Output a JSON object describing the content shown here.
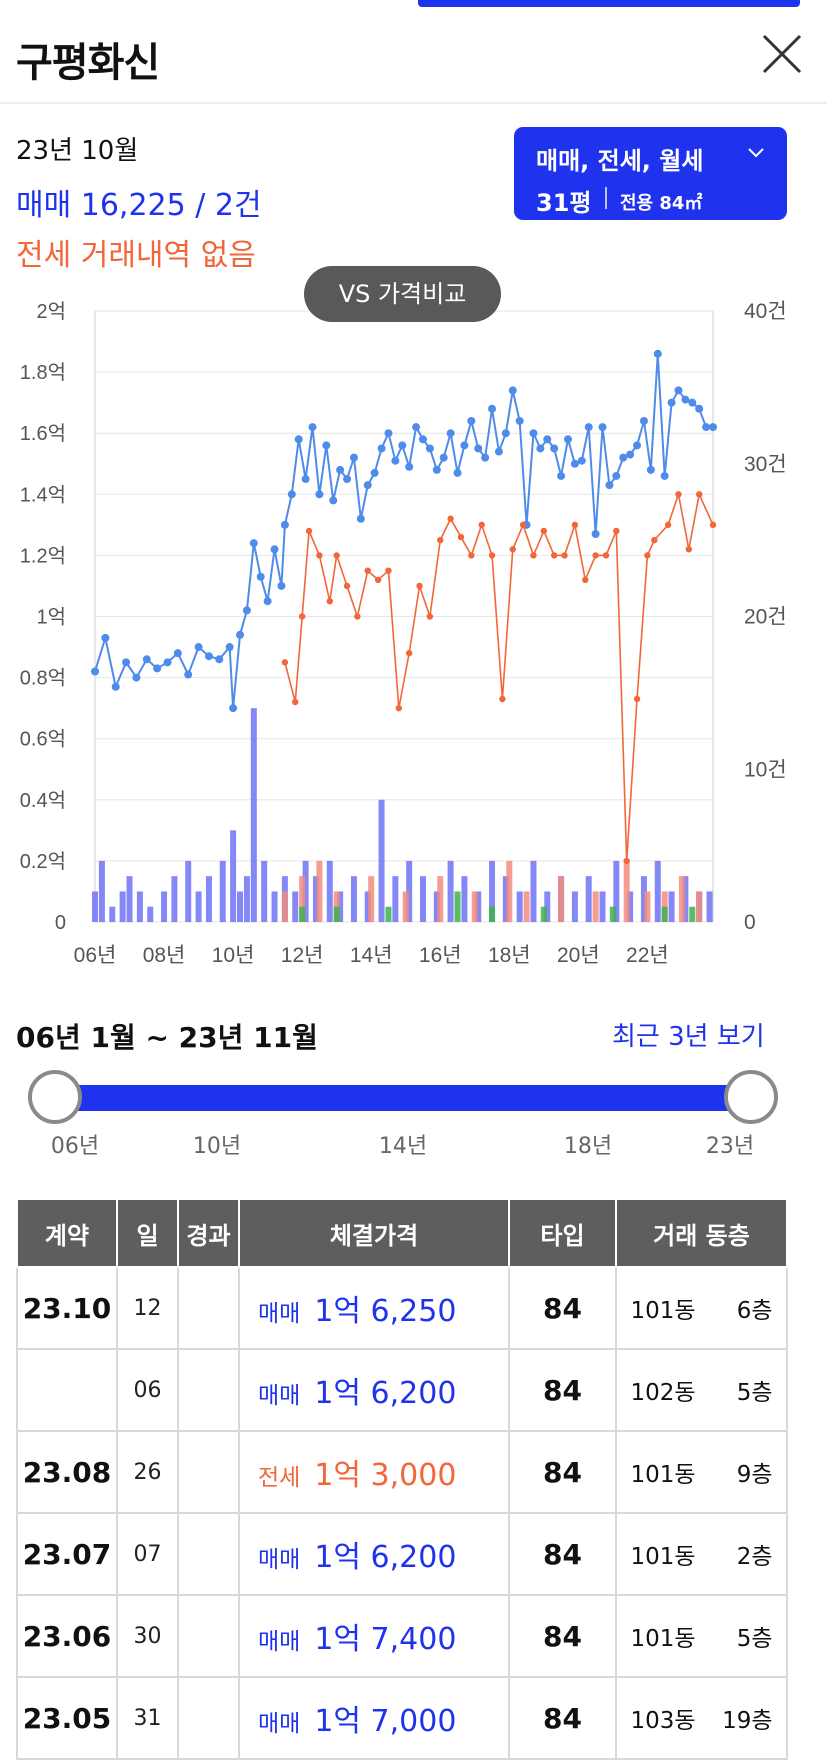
{
  "header": {
    "title": "구평화신"
  },
  "summary": {
    "date": "23년 10월",
    "sale": "매매 16,225 / 2건",
    "lease": "전세 거래내역 없음"
  },
  "filter": {
    "deal_types": "매매, 전세, 월세",
    "pyeong": "31평",
    "area": "전용 84㎡"
  },
  "vs_button": "VS 가격비교",
  "colors": {
    "accent": "#1f33ee",
    "sale": "#4f8bea",
    "lease": "#f2663a",
    "volume_sale": "#6d73f5",
    "volume_lease": "#f28c7d",
    "volume_rent": "#3db34a"
  },
  "chart_data": {
    "type": "line",
    "y_left": {
      "min": 0,
      "max": 2,
      "unit": "억",
      "ticks": [
        "0",
        "0.2억",
        "0.4억",
        "0.6억",
        "0.8억",
        "1억",
        "1.2억",
        "1.4억",
        "1.6억",
        "1.8억",
        "2억"
      ]
    },
    "y_right": {
      "min": 0,
      "max": 40,
      "ticks": [
        "0",
        "10건",
        "20건",
        "30건",
        "40건"
      ]
    },
    "x_ticks": [
      "06년",
      "08년",
      "10년",
      "12년",
      "14년",
      "16년",
      "18년",
      "20년",
      "22년"
    ],
    "x_range": [
      2006,
      2023.9
    ],
    "grid": true,
    "series": [
      {
        "kind": "sale",
        "x": [
          2006.0,
          2006.3,
          2006.6,
          2006.9,
          2007.2,
          2007.5,
          2007.8,
          2008.1,
          2008.4,
          2008.7,
          2009.0,
          2009.3,
          2009.6,
          2009.9,
          2010.0,
          2010.2,
          2010.4,
          2010.6,
          2010.8,
          2011.0,
          2011.2,
          2011.4,
          2011.5,
          2011.7,
          2011.9,
          2012.1,
          2012.3,
          2012.5,
          2012.7,
          2012.9,
          2013.1,
          2013.3,
          2013.5,
          2013.7,
          2013.9,
          2014.1,
          2014.3,
          2014.5,
          2014.7,
          2014.9,
          2015.1,
          2015.3,
          2015.5,
          2015.7,
          2015.9,
          2016.1,
          2016.3,
          2016.5,
          2016.7,
          2016.9,
          2017.1,
          2017.3,
          2017.5,
          2017.7,
          2017.9,
          2018.1,
          2018.3,
          2018.5,
          2018.7,
          2018.9,
          2019.1,
          2019.3,
          2019.5,
          2019.7,
          2019.9,
          2020.1,
          2020.3,
          2020.5,
          2020.7,
          2020.9,
          2021.1,
          2021.3,
          2021.5,
          2021.7,
          2021.9,
          2022.1,
          2022.3,
          2022.5,
          2022.7,
          2022.9,
          2023.1,
          2023.3,
          2023.5,
          2023.7,
          2023.9
        ],
        "y": [
          0.82,
          0.93,
          0.77,
          0.85,
          0.8,
          0.86,
          0.83,
          0.85,
          0.88,
          0.81,
          0.9,
          0.87,
          0.86,
          0.9,
          0.7,
          0.94,
          1.02,
          1.24,
          1.13,
          1.05,
          1.22,
          1.1,
          1.3,
          1.4,
          1.58,
          1.45,
          1.62,
          1.4,
          1.56,
          1.38,
          1.48,
          1.45,
          1.52,
          1.32,
          1.43,
          1.47,
          1.55,
          1.6,
          1.51,
          1.56,
          1.49,
          1.62,
          1.58,
          1.55,
          1.48,
          1.52,
          1.6,
          1.47,
          1.56,
          1.64,
          1.55,
          1.52,
          1.68,
          1.54,
          1.6,
          1.74,
          1.64,
          1.3,
          1.6,
          1.55,
          1.58,
          1.55,
          1.46,
          1.58,
          1.5,
          1.51,
          1.62,
          1.27,
          1.62,
          1.43,
          1.46,
          1.52,
          1.53,
          1.56,
          1.64,
          1.48,
          1.86,
          1.46,
          1.7,
          1.74,
          1.71,
          1.7,
          1.68,
          1.62,
          1.62
        ]
      },
      {
        "kind": "lease",
        "x": [
          2011.5,
          2011.8,
          2012.0,
          2012.2,
          2012.5,
          2012.8,
          2013.0,
          2013.3,
          2013.6,
          2013.9,
          2014.2,
          2014.5,
          2014.8,
          2015.1,
          2015.4,
          2015.7,
          2016.0,
          2016.3,
          2016.6,
          2016.9,
          2017.2,
          2017.5,
          2017.8,
          2018.1,
          2018.4,
          2018.7,
          2019.0,
          2019.3,
          2019.6,
          2019.9,
          2020.2,
          2020.5,
          2020.8,
          2021.1,
          2021.4,
          2021.7,
          2022.0,
          2022.2,
          2022.6,
          2022.9,
          2023.2,
          2023.5,
          2023.9
        ],
        "y": [
          0.85,
          0.72,
          1.0,
          1.28,
          1.2,
          1.05,
          1.2,
          1.1,
          1.0,
          1.15,
          1.12,
          1.15,
          0.7,
          0.88,
          1.1,
          1.0,
          1.25,
          1.32,
          1.26,
          1.2,
          1.3,
          1.2,
          0.73,
          1.22,
          1.3,
          1.2,
          1.28,
          1.2,
          1.2,
          1.3,
          1.12,
          1.2,
          1.2,
          1.28,
          0.2,
          0.73,
          1.2,
          1.25,
          1.3,
          1.4,
          1.22,
          1.4,
          1.3
        ]
      }
    ],
    "volume_series": [
      {
        "kind": "sale",
        "x": [
          2006.0,
          2006.2,
          2006.5,
          2006.8,
          2007.0,
          2007.3,
          2007.6,
          2008.0,
          2008.3,
          2008.7,
          2009.0,
          2009.3,
          2009.7,
          2010.0,
          2010.2,
          2010.4,
          2010.6,
          2010.9,
          2011.2,
          2011.5,
          2011.8,
          2012.1,
          2012.4,
          2012.8,
          2013.1,
          2013.5,
          2013.9,
          2014.3,
          2014.7,
          2015.1,
          2015.5,
          2015.9,
          2016.3,
          2016.7,
          2017.1,
          2017.5,
          2017.9,
          2018.3,
          2018.7,
          2019.1,
          2019.5,
          2019.9,
          2020.3,
          2020.7,
          2021.1,
          2021.5,
          2021.9,
          2022.3,
          2022.7,
          2023.1,
          2023.5,
          2023.8
        ],
        "y": [
          2,
          4,
          1,
          2,
          3,
          2,
          1,
          2,
          3,
          4,
          2,
          3,
          4,
          6,
          2,
          3,
          14,
          4,
          2,
          3,
          2,
          4,
          3,
          4,
          2,
          3,
          2,
          8,
          3,
          4,
          3,
          2,
          4,
          3,
          2,
          4,
          3,
          2,
          4,
          2,
          3,
          2,
          3,
          2,
          4,
          2,
          3,
          4,
          2,
          3,
          2,
          2
        ]
      },
      {
        "kind": "lease",
        "x": [
          2011.5,
          2012.0,
          2012.5,
          2013.0,
          2014.0,
          2015.0,
          2016.0,
          2017.0,
          2018.0,
          2018.5,
          2019.5,
          2020.5,
          2021.4,
          2022.0,
          2022.5,
          2023.0,
          2023.5
        ],
        "y": [
          2,
          3,
          4,
          2,
          3,
          2,
          3,
          2,
          4,
          2,
          3,
          2,
          4,
          2,
          2,
          3,
          2
        ]
      },
      {
        "kind": "rent",
        "x": [
          2012.0,
          2013.0,
          2014.5,
          2016.5,
          2017.5,
          2019.0,
          2021.0,
          2022.5,
          2023.3
        ],
        "y": [
          1,
          1,
          1,
          2,
          1,
          1,
          1,
          1,
          1
        ]
      }
    ]
  },
  "range": {
    "label": "06년 1월 ~ 23년 11월",
    "recent_link": "최근 3년 보기",
    "ticks": [
      "06년",
      "10년",
      "14년",
      "18년",
      "23년"
    ]
  },
  "table": {
    "headers": [
      "계약",
      "일",
      "경과",
      "체결가격",
      "타입",
      "거래 동층"
    ],
    "rows": [
      {
        "ym": "23.10",
        "day": "12",
        "elapsed": "",
        "kind": "매매",
        "price": "1억 6,250",
        "type": "84",
        "dong": "101동",
        "floor": "6층"
      },
      {
        "ym": "",
        "day": "06",
        "elapsed": "",
        "kind": "매매",
        "price": "1억 6,200",
        "type": "84",
        "dong": "102동",
        "floor": "5층"
      },
      {
        "ym": "23.08",
        "day": "26",
        "elapsed": "",
        "kind": "전세",
        "price": "1억 3,000",
        "type": "84",
        "dong": "101동",
        "floor": "9층"
      },
      {
        "ym": "23.07",
        "day": "07",
        "elapsed": "",
        "kind": "매매",
        "price": "1억 6,200",
        "type": "84",
        "dong": "101동",
        "floor": "2층"
      },
      {
        "ym": "23.06",
        "day": "30",
        "elapsed": "",
        "kind": "매매",
        "price": "1억 7,400",
        "type": "84",
        "dong": "101동",
        "floor": "5층"
      },
      {
        "ym": "23.05",
        "day": "31",
        "elapsed": "",
        "kind": "매매",
        "price": "1억 7,000",
        "type": "84",
        "dong": "103동",
        "floor": "19층"
      }
    ]
  }
}
